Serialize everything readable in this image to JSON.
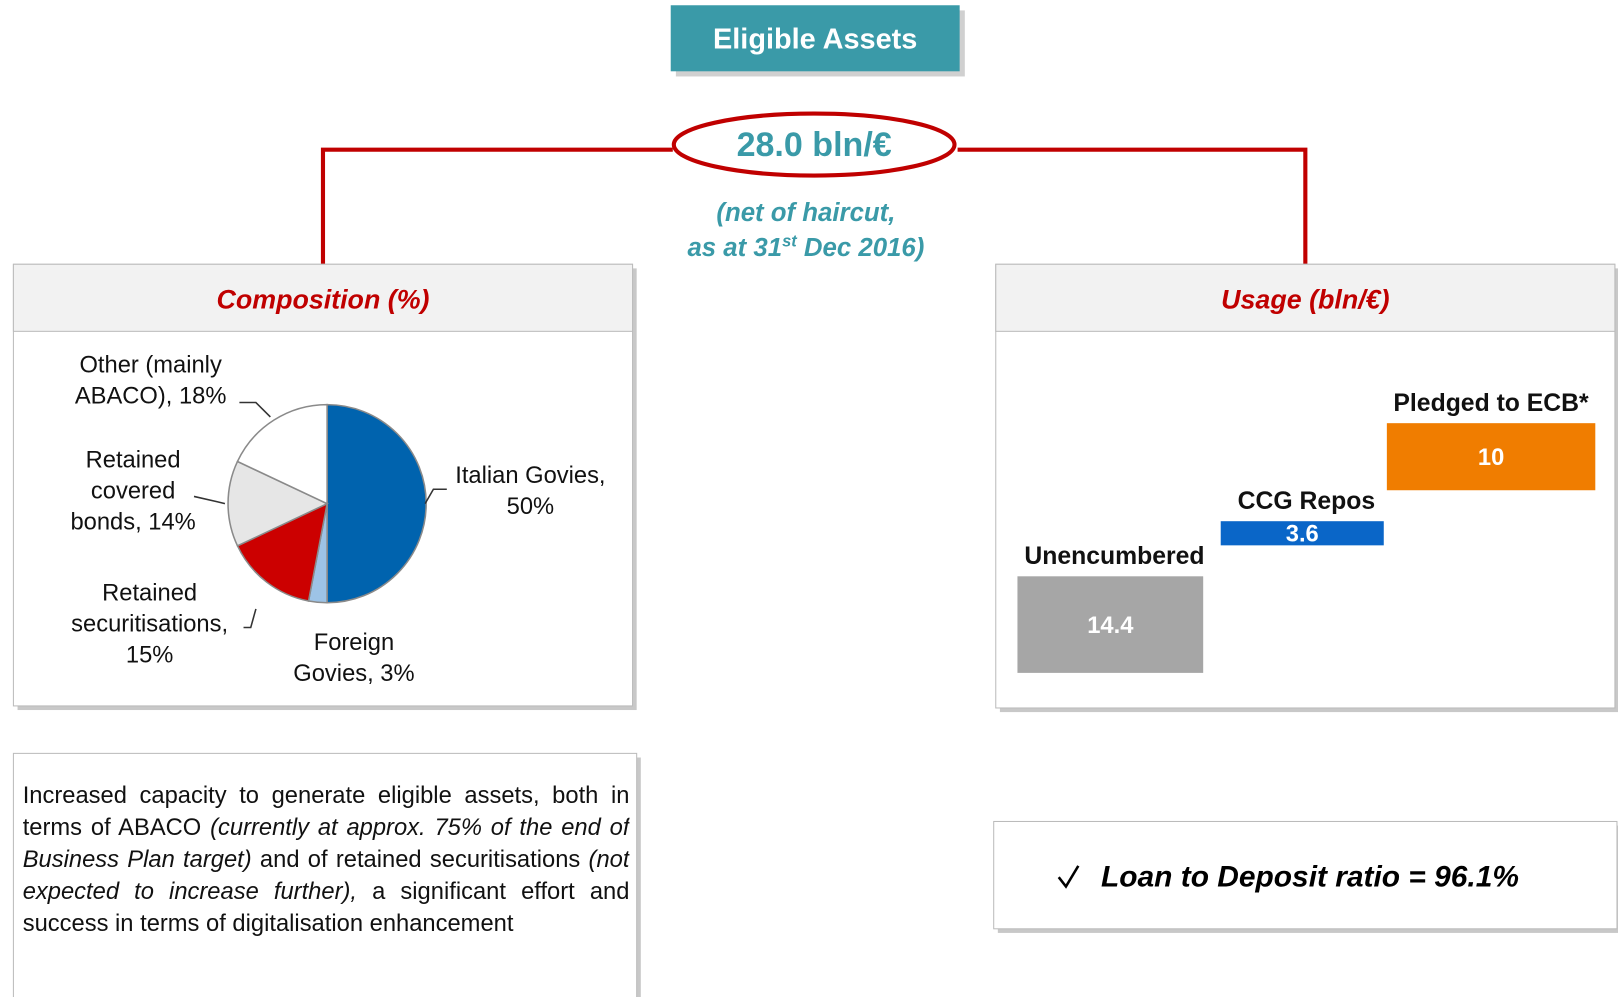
{
  "header": {
    "title": "Eligible Assets",
    "total": "28.0 bln/€",
    "note": {
      "line1": "(net of haircut,",
      "line2_start": "as at 31",
      "line2_sup": "st",
      "line2_end": " Dec 2016)"
    }
  },
  "chart_data": [
    {
      "type": "pie",
      "title": "Composition (%)",
      "categories": [
        "Italian Govies",
        "Foreign Govies",
        "Retained securitisations",
        "Retained covered bonds",
        "Other (mainly ABACO)"
      ],
      "labels": [
        [
          "Italian Govies,",
          "50%"
        ],
        [
          "Foreign",
          "Govies, 3%"
        ],
        [
          "Retained",
          "securitisations,",
          "15%"
        ],
        [
          "Retained",
          "covered",
          "bonds, 14%"
        ],
        [
          "Other (mainly",
          "ABACO), 18%"
        ]
      ],
      "values": [
        50,
        3,
        15,
        14,
        18
      ],
      "colors": [
        "#0063ae",
        "#9dc3e6",
        "#cc0000",
        "#e6e6e6",
        "#ffffff"
      ]
    },
    {
      "type": "waterfall",
      "title": "Usage (bln/€)",
      "categories": [
        "Unencumbered",
        "CCG Repos",
        "Pledged to ECB*"
      ],
      "values": [
        14.4,
        3.6,
        10
      ],
      "colors": [
        "#a6a6a6",
        "#0a66c8",
        "#f07d00"
      ]
    }
  ],
  "note": {
    "segments": [
      {
        "text": "Increased capacity to generate eligible assets, both in terms of ABACO ",
        "italic": false
      },
      {
        "text": "(currently at approx. 75% of the end of Business Plan target)",
        "italic": true
      },
      {
        "text": " and of retained securitisations ",
        "italic": false
      },
      {
        "text": "(not expected to increase further),",
        "italic": true
      },
      {
        "text": " a significant effort and success in terms of digitalisation enhancement",
        "italic": false
      }
    ]
  },
  "ratio": "Loan to Deposit ratio = 96.1%"
}
